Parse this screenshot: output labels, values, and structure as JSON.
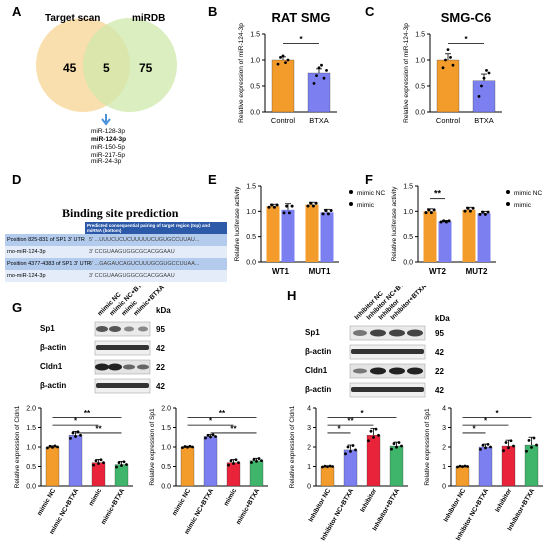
{
  "panels": {
    "A": {
      "letter": "A",
      "set1_label": "Target scan",
      "set2_label": "miRDB",
      "only1": "45",
      "overlap": "5",
      "only2": "75",
      "mirnas": [
        "miR-128-3p",
        "miR-124-3p",
        "miR-150-5p",
        "miR-217-5p",
        "miR-24-3p"
      ],
      "colors": {
        "set1": "#f9dcaa",
        "set2": "#cfe8a9",
        "arrow": "#4a90d9"
      }
    },
    "B": {
      "letter": "B",
      "title": "RAT SMG",
      "sig": "*"
    },
    "C": {
      "letter": "C",
      "title": "SMG-C6",
      "sig": "*"
    },
    "D": {
      "letter": "D",
      "title": "Binding site prediction",
      "header": "Predicted consequential pairing of target region (top) and miRNA (bottom)",
      "rows": [
        {
          "label": "Position 825-831 of SP1 3' UTR",
          "seq": "5'  ...UUUCUCUCUUUUUCUGUGCCUUAU..."
        },
        {
          "label": "rno-miR-124-3p",
          "seq": "3'  CCGUAAGUGGCGCACGGAAU"
        },
        {
          "label": "Position 4377-4383 of SP1 3' UTR",
          "seq": "5'  ...GAGAUCAGUCUUUGCGUGCCUUAA..."
        },
        {
          "label": "rno-miR-124-3p",
          "seq": "3'  CCGUAAGUGGCGCACGGAAU"
        }
      ]
    },
    "E": {
      "letter": "E",
      "legend": [
        "mimic NC",
        "mimic"
      ]
    },
    "F": {
      "letter": "F",
      "legend": [
        "mimic NC",
        "mimic"
      ],
      "sig": "**"
    },
    "G": {
      "letter": "G",
      "lanes": [
        "mimic NC",
        "mimic NC+BTXA",
        "mimic",
        "mimic+BTXA"
      ],
      "kda_label": "kDa",
      "bands": [
        {
          "name": "Sp1",
          "kda": "95"
        },
        {
          "name": "β-actin",
          "kda": "42"
        },
        {
          "name": "Cldn1",
          "kda": "22"
        },
        {
          "name": "β-actin",
          "kda": "42"
        }
      ]
    },
    "H": {
      "letter": "H",
      "lanes": [
        "Inhibitor NC",
        "Inhibitor NC+BTXA",
        "Inhibitor",
        "Inhibitor+BTXA"
      ],
      "kda_label": "kDa",
      "bands": [
        {
          "name": "Sp1",
          "kda": "95"
        },
        {
          "name": "β-actin",
          "kda": "42"
        },
        {
          "name": "Cldn1",
          "kda": "22"
        },
        {
          "name": "β-actin",
          "kda": "42"
        }
      ]
    }
  },
  "chart_data": [
    {
      "id": "B",
      "type": "bar",
      "title": "RAT SMG",
      "categories": [
        "Control",
        "BTXA"
      ],
      "values": [
        1.0,
        0.75
      ],
      "errors": [
        0.06,
        0.08
      ],
      "points": [
        [
          0.92,
          1.05,
          1.08,
          0.95,
          1.0
        ],
        [
          0.55,
          0.7,
          0.85,
          0.9,
          0.65,
          0.8
        ]
      ],
      "colors": [
        "#f39c2c",
        "#7b7ff0"
      ],
      "ylabel": "Relative expression of miR-124-3p",
      "ylim": [
        0,
        1.5
      ],
      "yticks": [
        0.0,
        0.5,
        1.0,
        1.5
      ],
      "sig": [
        {
          "from": 0,
          "to": 1,
          "label": "*"
        }
      ]
    },
    {
      "id": "C",
      "type": "bar",
      "title": "SMG-C6",
      "categories": [
        "Control",
        "BTXA"
      ],
      "values": [
        1.0,
        0.6
      ],
      "errors": [
        0.12,
        0.13
      ],
      "points": [
        [
          0.85,
          1.0,
          1.2,
          1.05,
          0.9
        ],
        [
          0.3,
          0.5,
          0.65,
          0.8,
          0.75
        ]
      ],
      "colors": [
        "#f39c2c",
        "#7b7ff0"
      ],
      "ylabel": "Relative expression of miR-124-3p",
      "ylim": [
        0,
        1.5
      ],
      "yticks": [
        0.0,
        0.5,
        1.0,
        1.5
      ],
      "sig": [
        {
          "from": 0,
          "to": 1,
          "label": "*"
        }
      ]
    },
    {
      "id": "E",
      "type": "bar",
      "categories": [
        "WT1",
        "MUT1"
      ],
      "series": [
        {
          "name": "mimic NC",
          "values": [
            1.1,
            1.13
          ],
          "errors": [
            0.04,
            0.05
          ]
        },
        {
          "name": "mimic",
          "values": [
            1.03,
            0.98
          ],
          "errors": [
            0.12,
            0.06
          ]
        }
      ],
      "colors": [
        "#f39c2c",
        "#7b7ff0"
      ],
      "ylabel": "Relative luciferase activity",
      "ylim": [
        0,
        1.5
      ],
      "yticks": [
        0.0,
        0.5,
        1.0,
        1.5
      ],
      "sig": []
    },
    {
      "id": "F",
      "type": "bar",
      "categories": [
        "WT2",
        "MUT2"
      ],
      "series": [
        {
          "name": "mimic NC",
          "values": [
            1.0,
            1.03
          ],
          "errors": [
            0.05,
            0.05
          ]
        },
        {
          "name": "mimic",
          "values": [
            0.8,
            0.96
          ],
          "errors": [
            0.02,
            0.04
          ]
        }
      ],
      "colors": [
        "#f39c2c",
        "#7b7ff0"
      ],
      "ylabel": "Relative luciferase activity",
      "ylim": [
        0,
        1.5
      ],
      "yticks": [
        0.0,
        0.5,
        1.0,
        1.5
      ],
      "sig": [
        {
          "from": 0,
          "to": 1,
          "label": "**"
        }
      ]
    },
    {
      "id": "G1",
      "type": "bar",
      "categories": [
        "mimic NC",
        "mimic NC+BTXA",
        "mimic",
        "mimic+BTXA"
      ],
      "values": [
        1.0,
        1.3,
        0.6,
        0.55
      ],
      "errors": [
        0.03,
        0.1,
        0.08,
        0.08
      ],
      "colors": [
        "#f39c2c",
        "#7b7ff0",
        "#e8233a",
        "#3fb56b"
      ],
      "ylabel": "Relative expression of Cldn1",
      "ylim": [
        0,
        2.0
      ],
      "yticks": [
        0.0,
        0.5,
        1.0,
        1.5,
        2.0
      ],
      "sig": [
        {
          "from": 0,
          "to": 3,
          "label": "**"
        },
        {
          "from": 0,
          "to": 2,
          "label": "*"
        },
        {
          "from": 1,
          "to": 3,
          "label": "**"
        }
      ]
    },
    {
      "id": "G2",
      "type": "bar",
      "categories": [
        "mimic NC",
        "mimic NC+BTXA",
        "mimic",
        "mimic+BTXA"
      ],
      "values": [
        1.0,
        1.27,
        0.6,
        0.65
      ],
      "errors": [
        0.02,
        0.05,
        0.08,
        0.06
      ],
      "colors": [
        "#f39c2c",
        "#7b7ff0",
        "#e8233a",
        "#3fb56b"
      ],
      "ylabel": "Relative expression of Sp1",
      "ylim": [
        0,
        2.0
      ],
      "yticks": [
        0.0,
        0.5,
        1.0,
        1.5,
        2.0
      ],
      "sig": [
        {
          "from": 0,
          "to": 3,
          "label": "**"
        },
        {
          "from": 0,
          "to": 2,
          "label": "*"
        },
        {
          "from": 1,
          "to": 3,
          "label": "**"
        }
      ]
    },
    {
      "id": "H1",
      "type": "bar",
      "categories": [
        "Inhibitor NC",
        "Inhibitor NC+BTXA",
        "Inhibitor",
        "Inhibitor+BTXA"
      ],
      "values": [
        1.0,
        1.85,
        2.6,
        2.05
      ],
      "errors": [
        0.03,
        0.25,
        0.35,
        0.2
      ],
      "colors": [
        "#f39c2c",
        "#7b7ff0",
        "#e8233a",
        "#3fb56b"
      ],
      "ylabel": "Relative expression of Cldn1",
      "ylim": [
        0,
        4
      ],
      "yticks": [
        0,
        1,
        2,
        3,
        4
      ],
      "sig": [
        {
          "from": 0,
          "to": 3,
          "label": "*"
        },
        {
          "from": 0,
          "to": 2,
          "label": "**"
        },
        {
          "from": 0,
          "to": 1,
          "label": "*"
        }
      ]
    },
    {
      "id": "H2",
      "type": "bar",
      "categories": [
        "Inhibitor NC",
        "Inhibitor NC+BTXA",
        "Inhibitor",
        "Inhibitor+BTXA"
      ],
      "values": [
        1.0,
        2.0,
        2.05,
        2.1
      ],
      "errors": [
        0.03,
        0.15,
        0.3,
        0.4
      ],
      "colors": [
        "#f39c2c",
        "#7b7ff0",
        "#e8233a",
        "#3fb56b"
      ],
      "ylabel": "Relative expression of Sp1",
      "ylim": [
        0,
        4
      ],
      "yticks": [
        0,
        1,
        2,
        3,
        4
      ],
      "sig": [
        {
          "from": 0,
          "to": 3,
          "label": "*"
        },
        {
          "from": 0,
          "to": 2,
          "label": "*"
        },
        {
          "from": 0,
          "to": 1,
          "label": "*"
        }
      ]
    }
  ]
}
